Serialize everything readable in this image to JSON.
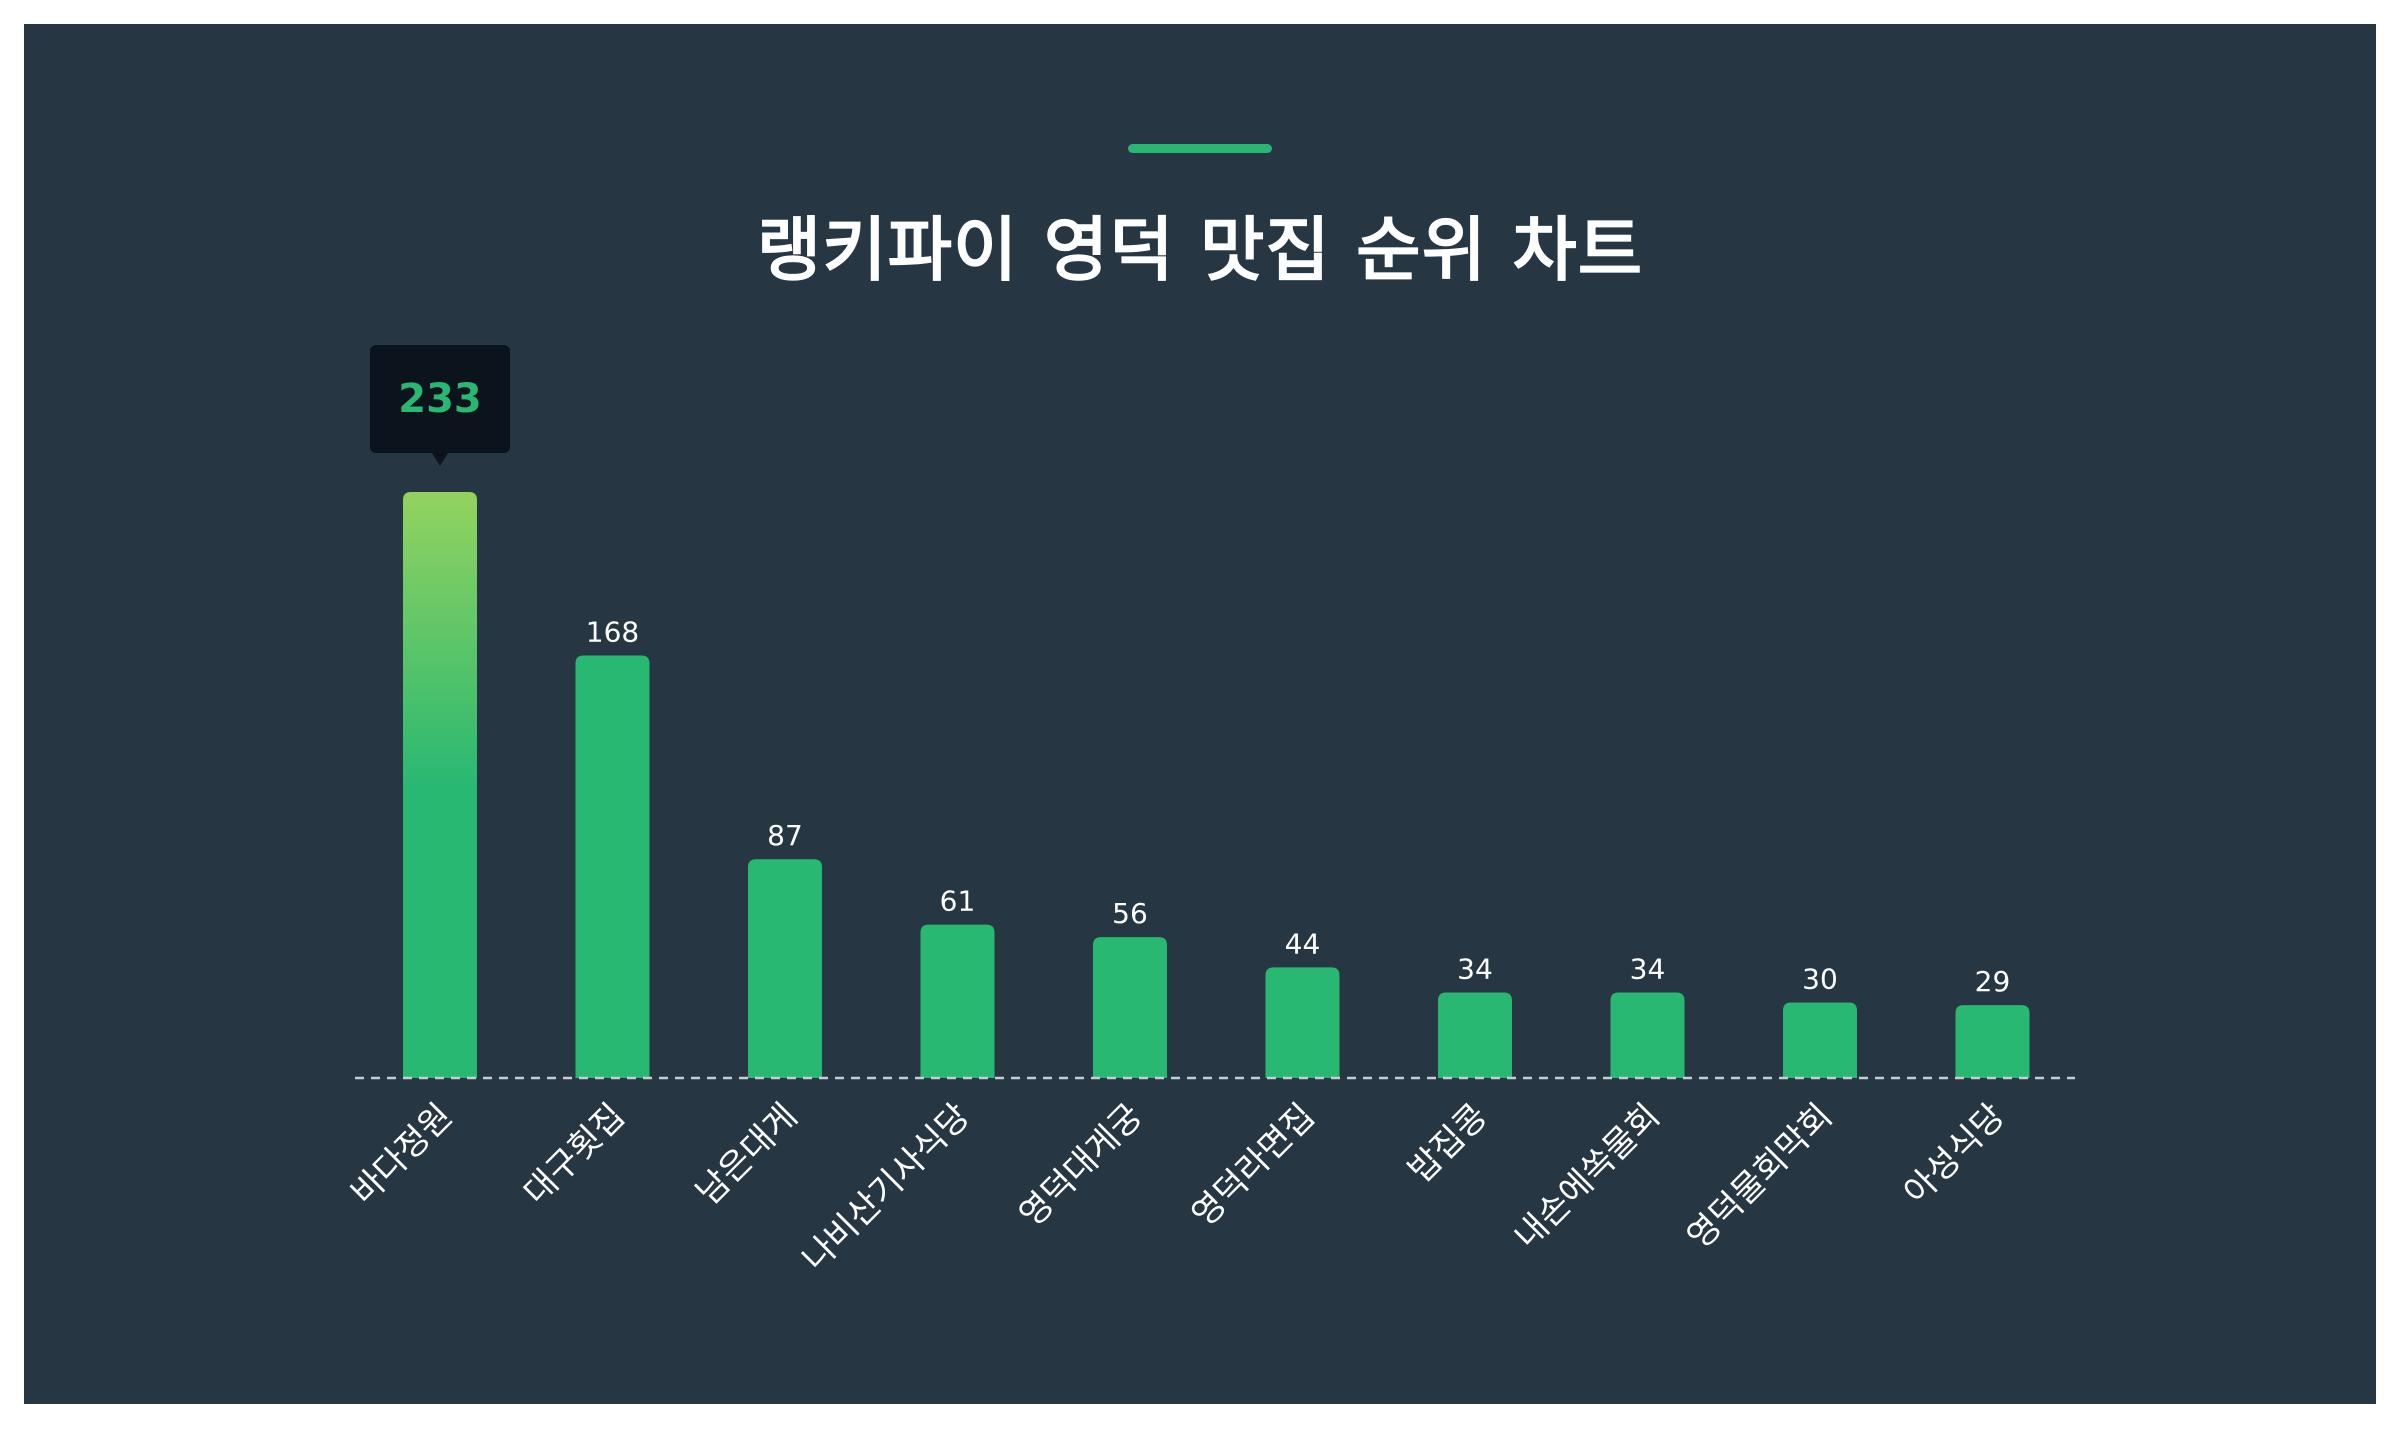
{
  "title": "랭키파이 영덕 맛집 순위 차트",
  "colors": {
    "background": "#263642",
    "bar": "#29b872",
    "highlight_top": "#93d35f",
    "tooltip_bg": "#0b141d",
    "baseline": "#c8cdd2"
  },
  "tooltip": {
    "value": "233"
  },
  "chart_data": {
    "type": "bar",
    "categories": [
      "바다정원",
      "대구횟집",
      "남은대게",
      "나비산기사식당",
      "영덕대게궁",
      "영덕라면집",
      "밥집콩",
      "내손에쏙물회",
      "영덕물회막회",
      "아성식당"
    ],
    "values": [
      233,
      168,
      87,
      61,
      56,
      44,
      34,
      34,
      30,
      29
    ],
    "value_labels": [
      "",
      "168",
      "87",
      "61",
      "56",
      "44",
      "34",
      "34",
      "30",
      "29"
    ],
    "highlighted_index": 0,
    "ylim": [
      0,
      233
    ],
    "grid": false,
    "legend": "none"
  }
}
